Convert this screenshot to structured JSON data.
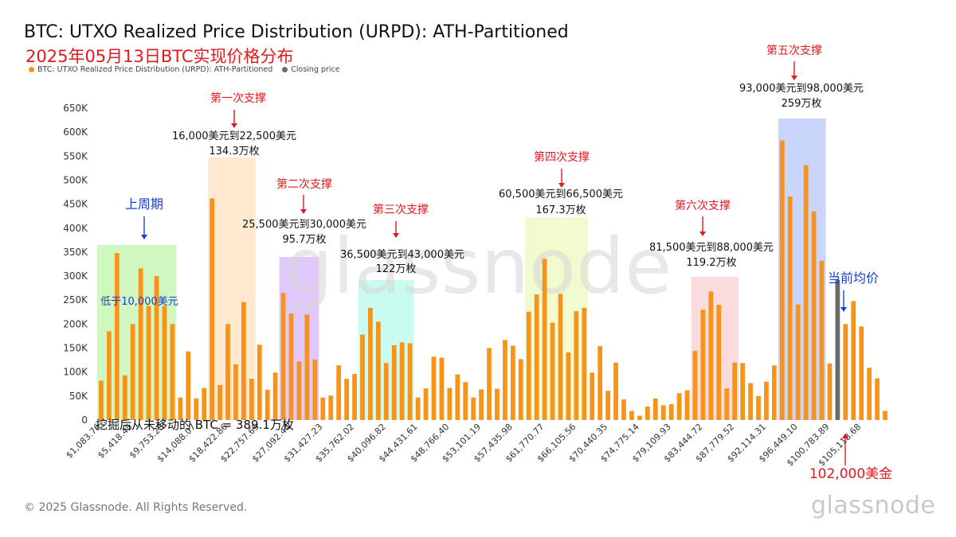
{
  "header": {
    "title": "BTC: UTXO Realized Price Distribution (URPD): ATH-Partitioned",
    "subtitle": "2025年05月13日BTC实现价格分布"
  },
  "legend": {
    "items": [
      {
        "label": "BTC: UTXO Realized Price Distribution (URPD): ATH-Partitioned",
        "color": "#f7931a"
      },
      {
        "label": "Closing price",
        "color": "#6b6b6b"
      }
    ]
  },
  "footer": {
    "copyright": "© 2025 Glassnode. All Rights Reserved.",
    "watermark": "glassnode",
    "logo": "glassnode"
  },
  "colors": {
    "bar": "#f7931a",
    "closing_bar": "#6b6b6b",
    "annotation_red": "#e0191f",
    "annotation_blue": "#1a3fd1",
    "zones": [
      "#a8f08a",
      "#ffd9a8",
      "#c79bf7",
      "#9ef7e6",
      "#e6f7a8",
      "#9db3f7",
      "#f7c0c0"
    ]
  },
  "chart_data": {
    "type": "bar",
    "ylim": [
      0,
      650000
    ],
    "yticks": [
      {
        "value": 0,
        "label": "0"
      },
      {
        "value": 50000,
        "label": "50K"
      },
      {
        "value": 100000,
        "label": "100K"
      },
      {
        "value": 150000,
        "label": "150K"
      },
      {
        "value": 200000,
        "label": "200K"
      },
      {
        "value": 250000,
        "label": "250K"
      },
      {
        "value": 300000,
        "label": "300K"
      },
      {
        "value": 350000,
        "label": "350K"
      },
      {
        "value": 400000,
        "label": "400K"
      },
      {
        "value": 450000,
        "label": "450K"
      },
      {
        "value": 500000,
        "label": "500K"
      },
      {
        "value": 550000,
        "label": "550K"
      },
      {
        "value": 600000,
        "label": "600K"
      },
      {
        "value": 650000,
        "label": "650K"
      }
    ],
    "xtick_labels": [
      {
        "index": 0,
        "label": "$1,083.76"
      },
      {
        "index": 4,
        "label": "$5,418.45"
      },
      {
        "index": 8,
        "label": "$9,753.28"
      },
      {
        "index": 12,
        "label": "$14,088.07"
      },
      {
        "index": 16,
        "label": "$18,422.86"
      },
      {
        "index": 20,
        "label": "$22,757.65"
      },
      {
        "index": 24,
        "label": "$27,092.44"
      },
      {
        "index": 28,
        "label": "$31,427.23"
      },
      {
        "index": 32,
        "label": "$35,762.02"
      },
      {
        "index": 36,
        "label": "$40,096.82"
      },
      {
        "index": 40,
        "label": "$44,431.61"
      },
      {
        "index": 44,
        "label": "$48,766.40"
      },
      {
        "index": 48,
        "label": "$53,101.19"
      },
      {
        "index": 52,
        "label": "$57,435.98"
      },
      {
        "index": 56,
        "label": "$61,770.77"
      },
      {
        "index": 60,
        "label": "$66,105.56"
      },
      {
        "index": 64,
        "label": "$70,440.35"
      },
      {
        "index": 68,
        "label": "$74,775.14"
      },
      {
        "index": 72,
        "label": "$79,109.93"
      },
      {
        "index": 76,
        "label": "$83,444.72"
      },
      {
        "index": 80,
        "label": "$87,779.52"
      },
      {
        "index": 84,
        "label": "$92,114.31"
      },
      {
        "index": 88,
        "label": "$96,449.10"
      },
      {
        "index": 92,
        "label": "$100,783.89"
      },
      {
        "index": 96,
        "label": "$105,118.68"
      }
    ],
    "closing_index": 93,
    "values": [
      82000,
      185000,
      348000,
      93000,
      200000,
      316000,
      238000,
      300000,
      238000,
      200000,
      47000,
      143000,
      45000,
      67000,
      462000,
      73000,
      200000,
      116000,
      246000,
      86000,
      157000,
      63000,
      99000,
      265000,
      222000,
      122000,
      220000,
      126000,
      47000,
      51000,
      114000,
      86000,
      96000,
      178000,
      234000,
      205000,
      119000,
      156000,
      162000,
      160000,
      47000,
      66000,
      132000,
      130000,
      67000,
      95000,
      79000,
      47000,
      64000,
      150000,
      65000,
      167000,
      155000,
      127000,
      226000,
      262000,
      336000,
      203000,
      263000,
      141000,
      227000,
      234000,
      99000,
      154000,
      61000,
      120000,
      43000,
      19000,
      9000,
      28000,
      45000,
      31000,
      33000,
      56000,
      62000,
      144000,
      230000,
      268000,
      240000,
      66000,
      120000,
      119000,
      77000,
      50000,
      80000,
      114000,
      583000,
      466000,
      241000,
      531000,
      435000,
      332000,
      118000,
      292000,
      200000,
      248000,
      195000,
      109000,
      87000,
      19000
    ],
    "zones": [
      {
        "start": 0,
        "end": 9
      },
      {
        "start": 14,
        "end": 19
      },
      {
        "start": 23,
        "end": 27
      },
      {
        "start": 33,
        "end": 39
      },
      {
        "start": 54,
        "end": 61
      },
      {
        "start": 86,
        "end": 91
      },
      {
        "start": 75,
        "end": 80
      }
    ],
    "annotations": {
      "prev_cycle": {
        "title": "上周期",
        "note": "低于10,000美元"
      },
      "support1": {
        "title": "第一次支撑",
        "range": "16,000美元到22,500美元",
        "amount": "134.3万枚"
      },
      "support2": {
        "title": "第二次支撑",
        "range": "25,500美元到30,000美元",
        "amount": "95.7万枚"
      },
      "support3": {
        "title": "第三次支撑",
        "range": "36,500美元到43,000美元",
        "amount": "122万枚"
      },
      "support4": {
        "title": "第四次支撑",
        "range": "60,500美元到66,500美元",
        "amount": "167.3万枚"
      },
      "support5": {
        "title": "第五次支撑",
        "range": "93,000美元到98,000美元",
        "amount": "259万枚"
      },
      "support6": {
        "title": "第六次支撑",
        "range": "81,500美元到88,000美元",
        "amount": "119.2万枚"
      },
      "current_avg": {
        "title": "当前均价"
      },
      "price_now": {
        "title": "102,000美金"
      },
      "unmoved": {
        "text": "挖掘后从未移动的 BTC = 389.1万枚"
      }
    }
  }
}
